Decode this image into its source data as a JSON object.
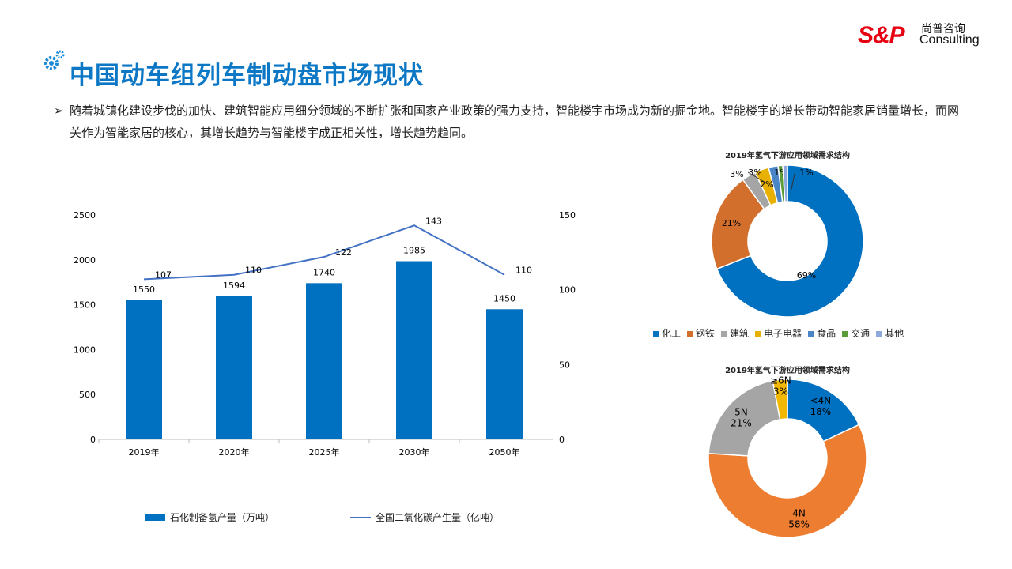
{
  "header": {
    "title": "中国动车组列车制动盘市场现状",
    "logo_brand": "S&P",
    "logo_cn": "尚普咨询",
    "logo_en": "Consulting"
  },
  "bullet": {
    "marker": "➢",
    "text": "随着城镇化建设步伐的加快、建筑智能应用细分领域的不断扩张和国家产业政策的强力支持，智能楼宇市场成为新的掘金地。智能楼宇的增长带动智能家居销量增长，而网关作为智能家居的核心，其增长趋势与智能楼宇成正相关性，增长趋势趋同。"
  },
  "chart_data": [
    {
      "type": "bar+line",
      "categories": [
        "2019年",
        "2020年",
        "2025年",
        "2030年",
        "2050年"
      ],
      "series": [
        {
          "name": "石化制备氢产量（万吨）",
          "type": "bar",
          "axis": "left",
          "color": "#0070C0",
          "values": [
            1550,
            1594,
            1740,
            1985,
            1450
          ]
        },
        {
          "name": "全国二氧化碳产生量（亿吨）",
          "type": "line",
          "axis": "right",
          "color": "#4472C4",
          "values": [
            107,
            110,
            122,
            143,
            110
          ]
        }
      ],
      "ylim_left": [
        0,
        2500
      ],
      "yticks_left": [
        0,
        500,
        1000,
        1500,
        2000,
        2500
      ],
      "ylim_right": [
        0,
        150
      ],
      "yticks_right": [
        0,
        50,
        100,
        150
      ],
      "legend": "bottom"
    },
    {
      "type": "pie",
      "donut": true,
      "title": "2019年氢气下游应用领域需求结构",
      "labels": [
        "化工",
        "钢铁",
        "建筑",
        "电子电器",
        "食品",
        "交通",
        "其他"
      ],
      "values": [
        69,
        21,
        3,
        3,
        2,
        1,
        1
      ],
      "colors": [
        "#0070C0",
        "#D36F2D",
        "#A5A5A5",
        "#E8B000",
        "#4A86C5",
        "#5B9B3A",
        "#8FA9DC"
      ],
      "legend": "bottom"
    },
    {
      "type": "pie",
      "donut": true,
      "title": "2019年氢气下游应用领域需求结构",
      "labels": [
        "<4N",
        "4N",
        "5N",
        "≥6N"
      ],
      "values": [
        18,
        58,
        21,
        3
      ],
      "colors": [
        "#0070C0",
        "#ED7D31",
        "#A5A5A5",
        "#F2B800"
      ]
    }
  ]
}
